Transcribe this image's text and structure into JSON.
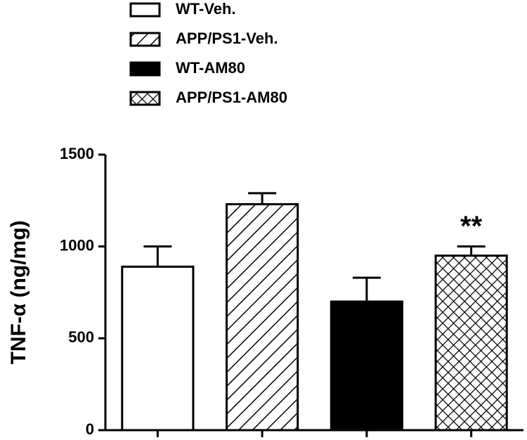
{
  "chart_data": {
    "type": "bar",
    "ylabel": "TNF-α (ng/mg)",
    "categories": [
      null,
      null,
      null,
      null
    ],
    "series": [
      {
        "name": "WT-Veh.",
        "pattern": "solid",
        "color": "#ffffff",
        "values": [
          890,
          null,
          null,
          null
        ],
        "errors": [
          110,
          null,
          null,
          null
        ]
      },
      {
        "name": "APP/PS1-Veh.",
        "pattern": "hatch",
        "color": "#ffffff",
        "values": [
          null,
          1230,
          null,
          null
        ],
        "errors": [
          null,
          60,
          null,
          null
        ]
      },
      {
        "name": "WT-AM80",
        "pattern": "solid",
        "color": "#000000",
        "values": [
          null,
          null,
          700,
          null
        ],
        "errors": [
          null,
          null,
          130,
          null
        ]
      },
      {
        "name": "APP/PS1-AM80",
        "pattern": "crosshatch",
        "color": "#ffffff",
        "values": [
          null,
          null,
          null,
          950
        ],
        "errors": [
          null,
          null,
          null,
          50
        ]
      }
    ],
    "annotations": [
      {
        "text": "**"
      }
    ],
    "ylim": [
      0,
      1500
    ],
    "yticks": [
      0,
      500,
      1000,
      1500
    ],
    "grid": false
  }
}
